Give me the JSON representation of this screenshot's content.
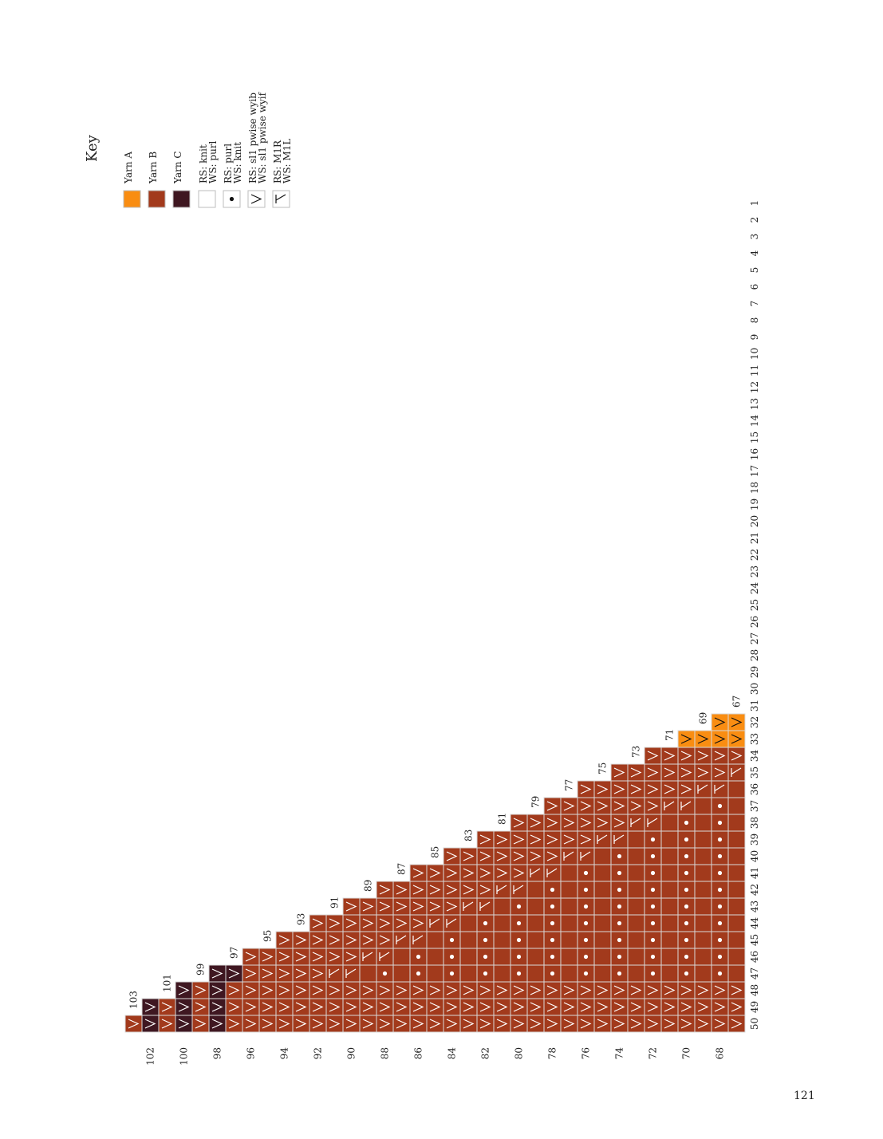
{
  "key": {
    "title": "Key",
    "items": [
      {
        "id": "yarn_a",
        "swatch": "color",
        "color": "#F98D12",
        "label": [
          "Yarn A"
        ]
      },
      {
        "id": "yarn_b",
        "swatch": "color",
        "color": "#A23A1C",
        "label": [
          "Yarn B"
        ]
      },
      {
        "id": "yarn_c",
        "swatch": "color",
        "color": "#3F1721",
        "label": [
          "Yarn C"
        ]
      },
      {
        "id": "knit",
        "swatch": "blank",
        "label": [
          "RS: knit",
          "WS: purl"
        ]
      },
      {
        "id": "purl",
        "swatch": "dot",
        "label": [
          "RS: purl",
          "WS: knit"
        ]
      },
      {
        "id": "slip",
        "swatch": "slip",
        "label": [
          "RS: sl1 pwise wyib",
          "WS: sl1 pwise wyif"
        ]
      },
      {
        "id": "make_one",
        "swatch": "m1",
        "label": [
          "RS: M1R",
          "WS: M1L"
        ]
      }
    ]
  },
  "chart": {
    "stitch_labels": [
      "1",
      "2",
      "3",
      "4",
      "5",
      "6",
      "7",
      "8",
      "9",
      "10",
      "11",
      "12",
      "13",
      "14",
      "15",
      "16",
      "17",
      "18",
      "19",
      "20",
      "21",
      "22",
      "23",
      "24",
      "25",
      "26",
      "27",
      "28",
      "29",
      "30",
      "31",
      "32",
      "33",
      "34",
      "35",
      "36",
      "37",
      "38",
      "39",
      "40",
      "41",
      "42",
      "43",
      "44",
      "45",
      "46",
      "47",
      "48",
      "49",
      "50"
    ],
    "row_labels_even": [
      "102",
      "100",
      "98",
      "96",
      "94",
      "92",
      "90",
      "88",
      "86",
      "84",
      "82",
      "80",
      "78",
      "76",
      "74",
      "72",
      "70",
      "68"
    ],
    "row_labels_odd": [
      "103",
      "101",
      "99",
      "97",
      "95",
      "93",
      "91",
      "89",
      "87",
      "85",
      "83",
      "81",
      "79",
      "77",
      "75",
      "73",
      "71",
      "69",
      "67"
    ],
    "first_row": 67,
    "last_row": 103,
    "colors": {
      "A": "#F98D12",
      "B": "#A23A1C",
      "C": "#3F1721",
      "grid": "#d9d9d9"
    }
  },
  "page_number": "121"
}
